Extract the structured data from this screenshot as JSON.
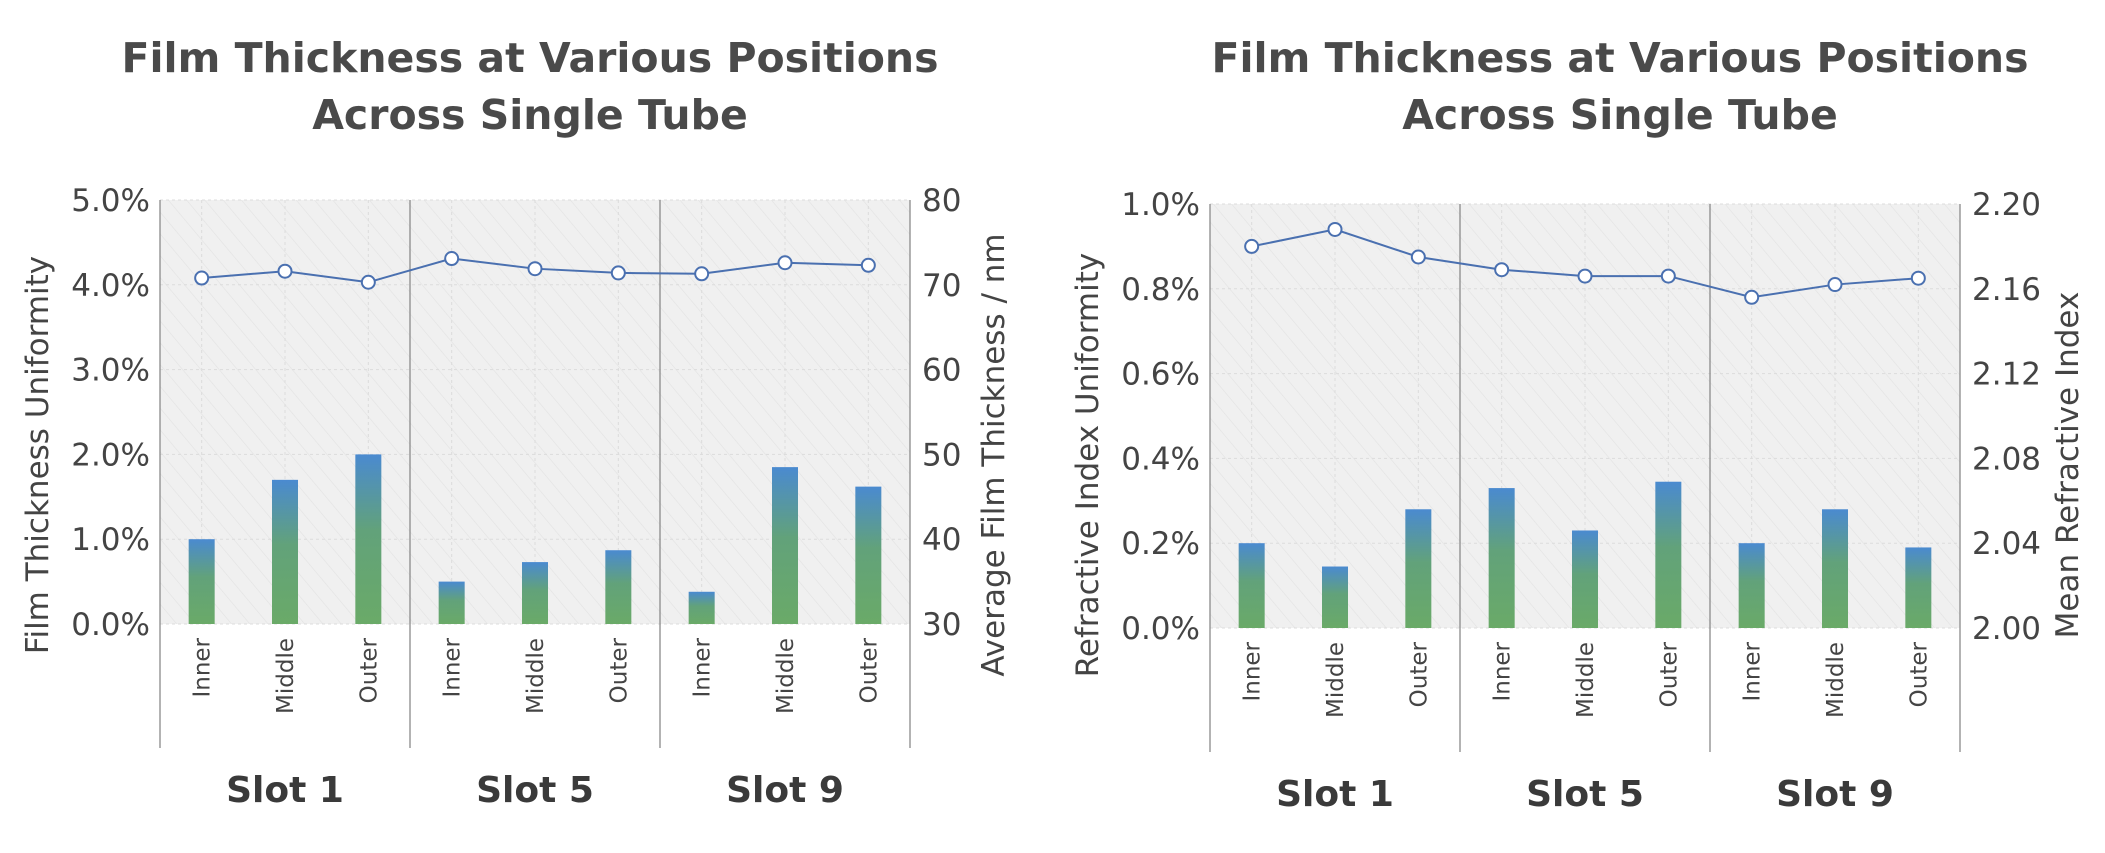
{
  "chart_data": [
    {
      "type": "bar",
      "title_lines": [
        "Film Thickness at Various Positions",
        "Across Single Tube"
      ],
      "groups": [
        "Slot 1",
        "Slot 5",
        "Slot 9"
      ],
      "categories": [
        "Inner",
        "Middle",
        "Outer",
        "Inner",
        "Middle",
        "Outer",
        "Inner",
        "Middle",
        "Outer"
      ],
      "ylabel": "Film Thickness Uniformity",
      "y2label": "Average Film Thickness / nm",
      "ylim": [
        0,
        5
      ],
      "y2lim": [
        30,
        80
      ],
      "yticks": [
        "0.0%",
        "1.0%",
        "2.0%",
        "3.0%",
        "4.0%",
        "5.0%"
      ],
      "y2ticks": [
        "30",
        "40",
        "50",
        "60",
        "70",
        "80"
      ],
      "series": [
        {
          "type": "bar",
          "axis": "left",
          "values": [
            1.0,
            1.7,
            2.0,
            0.5,
            0.73,
            0.87,
            0.38,
            1.85,
            1.62
          ]
        },
        {
          "type": "line",
          "axis": "right",
          "values": [
            70.8,
            71.6,
            70.3,
            73.1,
            71.9,
            71.4,
            71.3,
            72.6,
            72.3
          ]
        }
      ],
      "colors": {
        "bar_top": "#4a8ad0",
        "bar_bottom": "#6aaa68",
        "line": "#4a70b0"
      }
    },
    {
      "type": "bar",
      "title_lines": [
        "Film Thickness at Various Positions",
        "Across Single Tube"
      ],
      "groups": [
        "Slot 1",
        "Slot 5",
        "Slot 9"
      ],
      "categories": [
        "Inner",
        "Middle",
        "Outer",
        "Inner",
        "Middle",
        "Outer",
        "Inner",
        "Middle",
        "Outer"
      ],
      "ylabel": "Refractive Index Uniformity",
      "y2label": "Mean Refractive Index",
      "ylim": [
        0,
        1
      ],
      "y2lim": [
        2.0,
        2.2
      ],
      "yticks": [
        "0.0%",
        "0.2%",
        "0.4%",
        "0.6%",
        "0.8%",
        "1.0%"
      ],
      "y2ticks": [
        "2.00",
        "2.04",
        "2.08",
        "2.12",
        "2.16",
        "2.20"
      ],
      "series": [
        {
          "type": "bar",
          "axis": "left",
          "values": [
            0.2,
            0.145,
            0.28,
            0.33,
            0.23,
            0.345,
            0.2,
            0.28,
            0.19
          ]
        },
        {
          "type": "line",
          "axis": "right",
          "values": [
            2.18,
            2.188,
            2.175,
            2.169,
            2.166,
            2.166,
            2.156,
            2.162,
            2.165
          ]
        }
      ],
      "colors": {
        "bar_top": "#4a8ad0",
        "bar_bottom": "#6aaa68",
        "line": "#4a70b0"
      }
    }
  ]
}
